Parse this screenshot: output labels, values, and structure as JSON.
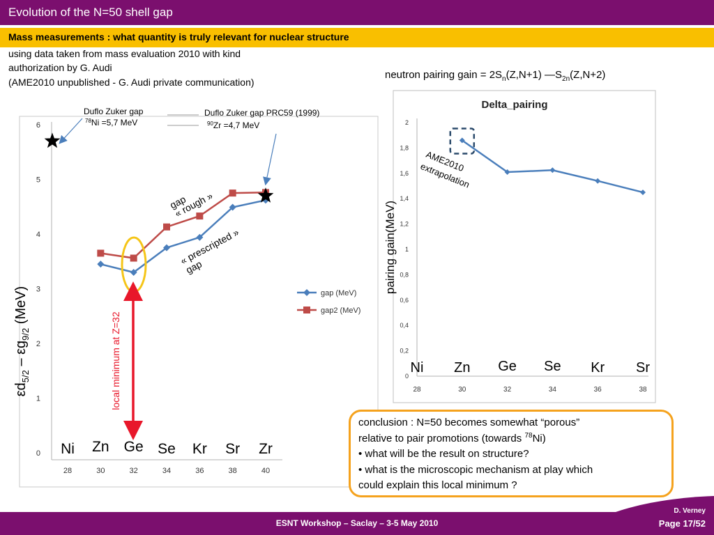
{
  "slide": {
    "title": "Evolution of the N=50 shell gap",
    "subtitle": "Mass measurements : what quantity is truly relevant for nuclear structure",
    "intro_lines": [
      "using data taken from mass evaluation 2010 with kind",
      "authorization by G. Audi",
      "(AME2010 unpublished  - G. Audi private communication)"
    ],
    "formula": {
      "prefix": "neutron pairing gain = 2S",
      "sub1": "n",
      "mid": "(Z,N+1) —S",
      "sub2": "2n",
      "suffix": "(Z,N+2)"
    },
    "conclusion_lines": [
      "conclusion : N=50 becomes somewhat “porous”",
      "relative to pair promotions (towards ",
      "• what will be the result on structure?",
      "• what is the microscopic mechanism at play which",
      "could explain this local minimum ?"
    ],
    "conclusion_sup": "78",
    "conclusion_tail": "Ni)",
    "footer": "ESNT Workshop –   Saclay –   3-5 May 2010",
    "author": "D. Verney",
    "page": "Page 17/52"
  },
  "colors": {
    "title_bar": "#7b0f6e",
    "subtitle_bar": "#f9bf00",
    "gap_series": "#4a7ebb",
    "gap2_series": "#be4b48",
    "highlight_ellipse": "#f5c518",
    "arrow": "#e8172a",
    "conclusion_border": "#f5a21d"
  },
  "chart_data": [
    {
      "type": "line",
      "x": [
        30,
        32,
        34,
        36,
        38,
        40
      ],
      "xticks": [
        "28",
        "30",
        "32",
        "34",
        "36",
        "38",
        "40"
      ],
      "yticks": [
        "0",
        "1",
        "2",
        "3",
        "4",
        "5",
        "6"
      ],
      "ylim": [
        0,
        6
      ],
      "xlim": [
        28,
        40
      ],
      "ylabel": "εd5/2 – εg9/2 (MeV)",
      "ylabel_parts": {
        "a": "ε",
        "b": "d",
        "c": "5/2",
        "d": " – ε",
        "e": "g",
        "f": "9/2",
        "g": " (MeV)"
      },
      "element_labels": [
        "Ni",
        "Zn",
        "Ge",
        "Se",
        "Kr",
        "Sr",
        "Zr"
      ],
      "series": [
        {
          "name": "gap (MeV)",
          "x": [
            30,
            32,
            34,
            36,
            38,
            40
          ],
          "values": [
            3.45,
            3.3,
            3.75,
            3.94,
            4.49,
            4.62
          ]
        },
        {
          "name": "gap2 (MeV)",
          "x": [
            30,
            32,
            34,
            36,
            38,
            40
          ],
          "values": [
            3.65,
            3.56,
            4.13,
            4.33,
            4.75,
            4.76
          ]
        }
      ],
      "stars": [
        {
          "x": 28,
          "y": 5.7,
          "label_line1": "Duflo Zuker gap",
          "label_sup": "78",
          "label_line2": "Ni =5,7 MeV"
        },
        {
          "x": 40,
          "y": 4.7,
          "label_line1": "Duflo Zuker gap PRC59 (1999)",
          "label_sup": "90",
          "label_line2": "Zr =4,7 MeV"
        }
      ],
      "annotations": {
        "rough_line1": "gap",
        "rough_line2": "« rough »",
        "prescripted_line1": "« prescripted »",
        "prescripted_line2": "gap",
        "local_minimum": "local minimum at Z=32"
      },
      "grid": false,
      "legend_position": "right"
    },
    {
      "type": "line",
      "title": "Delta_pairing",
      "ylabel": "pairing gain(MeV)",
      "x": [
        28,
        30,
        32,
        34,
        36,
        38
      ],
      "xticks": [
        "28",
        "30",
        "32",
        "34",
        "36",
        "38"
      ],
      "yticks": [
        "0",
        "0,2",
        "0,4",
        "0,6",
        "0,8",
        "1",
        "1,2",
        "1,4",
        "1,6",
        "1,8",
        "2"
      ],
      "ylim": [
        0,
        2
      ],
      "xlim": [
        28,
        38
      ],
      "element_labels": [
        "Ni",
        "Zn",
        "Ge",
        "Se",
        "Kr",
        "Sr"
      ],
      "series": [
        {
          "x": [
            30,
            32,
            34,
            36,
            38
          ],
          "values": [
            1.86,
            1.61,
            1.625,
            1.54,
            1.45
          ]
        }
      ],
      "annotations": {
        "extrapolation_line1": "AME2010",
        "extrapolation_line2": "extrapolation"
      },
      "grid": false
    }
  ]
}
